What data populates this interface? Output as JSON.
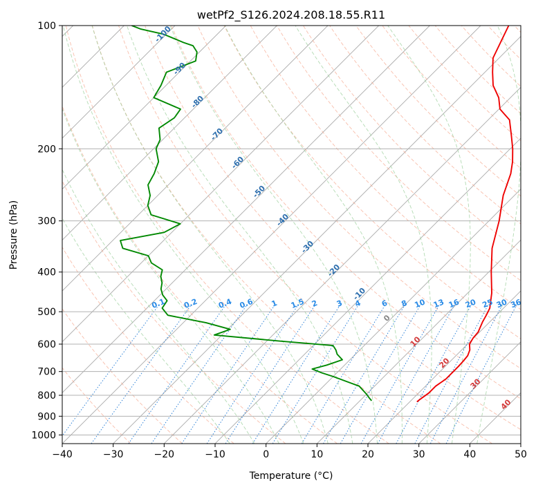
{
  "chart_data": {
    "type": "line",
    "title": "wetPf2_S126.2024.208.18.55.R11",
    "xlabel": "Temperature (°C)",
    "ylabel": "Pressure (hPa)",
    "xlim": [
      -40,
      50
    ],
    "ylim": [
      1050,
      100
    ],
    "y_scale": "log",
    "grid": true,
    "x_ticks": [
      -40,
      -30,
      -20,
      -10,
      0,
      10,
      20,
      30,
      40,
      50
    ],
    "y_ticks": [
      100,
      200,
      300,
      400,
      500,
      600,
      700,
      800,
      900,
      1000
    ],
    "skew_degrees": 45,
    "series": [
      {
        "color": "#ee0000",
        "x": [
          21.4,
          21.5,
          22.0,
          22.0,
          22.6,
          22.6,
          22.6,
          22.5,
          22.3,
          21.6,
          20.4,
          19.9,
          19.7,
          18.6,
          18.0,
          17.3,
          14.7,
          10.5,
          6.0,
          2.0,
          -2.2,
          -5.0,
          -7.0,
          -9.5,
          -12.5,
          -15.8,
          -19.8,
          -22.3,
          -25.8,
          -28.5,
          -31.2,
          -34.5
        ],
        "y": [
          830,
          820,
          790,
          760,
          730,
          700,
          680,
          660,
          640,
          620,
          600,
          580,
          560,
          530,
          510,
          490,
          450,
          400,
          350,
          300,
          260,
          230,
          215,
          200,
          185,
          170,
          160,
          150,
          140,
          130,
          120,
          100
        ]
      },
      {
        "color": "#008800",
        "x": [
          12.3,
          11.5,
          10.0,
          7.0,
          0.0,
          -3.0,
          -5.6,
          -3.5,
          -1.5,
          -3.6,
          -4.7,
          -6.1,
          -17.3,
          -31.5,
          -29.5,
          -35.5,
          -44.5,
          -47.0,
          -47.5,
          -49.5,
          -51.0,
          -52.0,
          -53.5,
          -54.5,
          -58.0,
          -60.0,
          -66.5,
          -68.5,
          -61.5,
          -60.0,
          -67.5,
          -70.0,
          -71.5,
          -74.0,
          -75.0,
          -76.5,
          -79.5,
          -80.5,
          -83.0,
          -82.0,
          -82.5,
          -90.0,
          -91.0,
          -92.5,
          -89.0,
          -90.5,
          -92.5,
          -95.0,
          -100.5,
          -106.0,
          -108.5,
          -108.5
        ],
        "y": [
          825,
          815,
          795,
          760,
          720,
          705,
          690,
          675,
          655,
          635,
          620,
          605,
          590,
          570,
          552,
          532,
          510,
          490,
          470,
          455,
          440,
          425,
          410,
          395,
          380,
          365,
          350,
          335,
          320,
          305,
          290,
          275,
          260,
          245,
          230,
          215,
          200,
          190,
          178,
          168,
          160,
          150,
          140,
          130,
          122,
          116,
          112,
          110,
          105,
          102,
          100,
          100
        ]
      }
    ],
    "labels": {
      "dry_adiabats": [
        "-100",
        "-90",
        "-80",
        "-70",
        "-60",
        "-50",
        "-40",
        "-30",
        "-20",
        "-10",
        "0",
        "10",
        "20",
        "30",
        "40"
      ],
      "mixing_ratio": [
        "0.1",
        "0.2",
        "0.4",
        "0.6",
        "1",
        "1.5",
        "2",
        "3",
        "4",
        "6",
        "8",
        "10",
        "13",
        "16",
        "20",
        "25",
        "30",
        "36"
      ]
    }
  }
}
